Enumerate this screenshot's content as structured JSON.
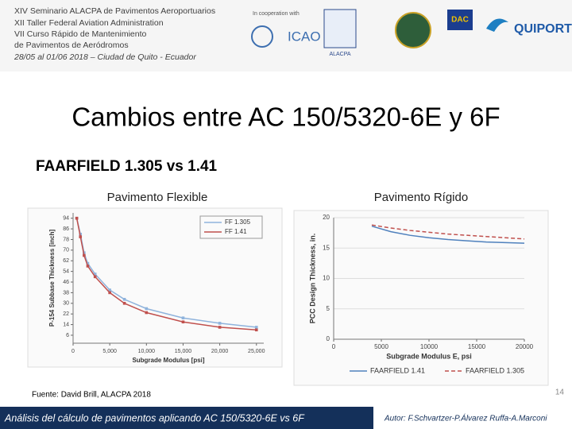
{
  "header": {
    "lines": [
      "XIV Seminario ALACPA de Pavimentos Aeroportuarios",
      "XII Taller Federal Aviation Administration",
      "VII Curso Rápido de Mantenimiento",
      "de Pavimentos de Aeródromos",
      "28/05 al 01/06 2018 – Ciudad de Quito - Ecuador"
    ],
    "cooperation": "In cooperation with",
    "logos": [
      "ICAO",
      "ALACPA",
      "DAC",
      "QUIPORT"
    ]
  },
  "title": "Cambios entre AC 150/5320-6E y 6F",
  "subtitle": "FAARFIELD 1.305 vs 1.41",
  "chart_data": [
    {
      "type": "line",
      "title": "Pavimento Flexible",
      "x_label": "Subgrade Modulus [psi]",
      "y_label": "P-154 Subbase Thickness [inch]",
      "x": [
        500,
        1000,
        1500,
        2000,
        3000,
        5000,
        7000,
        10000,
        15000,
        20000,
        25000
      ],
      "series": [
        {
          "name": "FF 1.305",
          "color": "#8fb3dc",
          "style": "solid",
          "values": [
            94,
            82,
            68,
            60,
            52,
            40,
            33,
            26,
            19,
            15,
            12
          ]
        },
        {
          "name": "FF 1.41",
          "color": "#c0504d",
          "style": "solid",
          "values": [
            94,
            80,
            66,
            58,
            50,
            38,
            30,
            23,
            16,
            12,
            10
          ]
        }
      ],
      "markers": true,
      "legend": "upper right",
      "xlim": [
        0,
        26000
      ],
      "xticks": [
        0,
        {
          "value": 5000,
          "label": "5,000"
        },
        {
          "value": 10000,
          "label": "10,000"
        },
        {
          "value": 15000,
          "label": "15,000"
        },
        {
          "value": 20000,
          "label": "20,000"
        },
        {
          "value": 25000,
          "label": "25,000"
        }
      ],
      "ylim": [
        0,
        98
      ],
      "yticks": [
        6,
        14,
        22,
        30,
        38,
        46,
        54,
        62,
        70,
        78,
        86,
        94
      ],
      "grid": false
    },
    {
      "type": "line",
      "title": "Pavimento Rígido",
      "x_label": "Subgrade Modulus E, psi",
      "y_label": "PCC Design Thickness, in.",
      "x": [
        4000,
        6000,
        8000,
        10000,
        12000,
        14000,
        16000,
        18000,
        20000
      ],
      "series": [
        {
          "name": "FAARFIELD 1.41",
          "color": "#4f81bd",
          "style": "solid",
          "values": [
            18.6,
            17.7,
            17.1,
            16.7,
            16.4,
            16.2,
            16.0,
            15.9,
            15.8
          ]
        },
        {
          "name": "FAARFIELD 1.305",
          "color": "#c0504d",
          "style": "dashed",
          "values": [
            18.8,
            18.3,
            17.9,
            17.6,
            17.3,
            17.1,
            16.9,
            16.7,
            16.5
          ]
        }
      ],
      "markers": false,
      "legend": "lower center",
      "xlim": [
        0,
        20000
      ],
      "xticks": [
        0,
        5000,
        10000,
        15000,
        20000
      ],
      "ylim": [
        0,
        20
      ],
      "yticks": [
        0,
        5,
        10,
        15,
        20
      ],
      "grid": true
    }
  ],
  "source": "Fuente: David Brill, ALACPA 2018",
  "page_number": 14,
  "footer": {
    "left": "Análisis del cálculo de pavimentos aplicando AC 150/5320-6E vs 6F",
    "right": "Autor: F.Schvartzer-P.Álvarez Ruffa-A.Marconi"
  }
}
